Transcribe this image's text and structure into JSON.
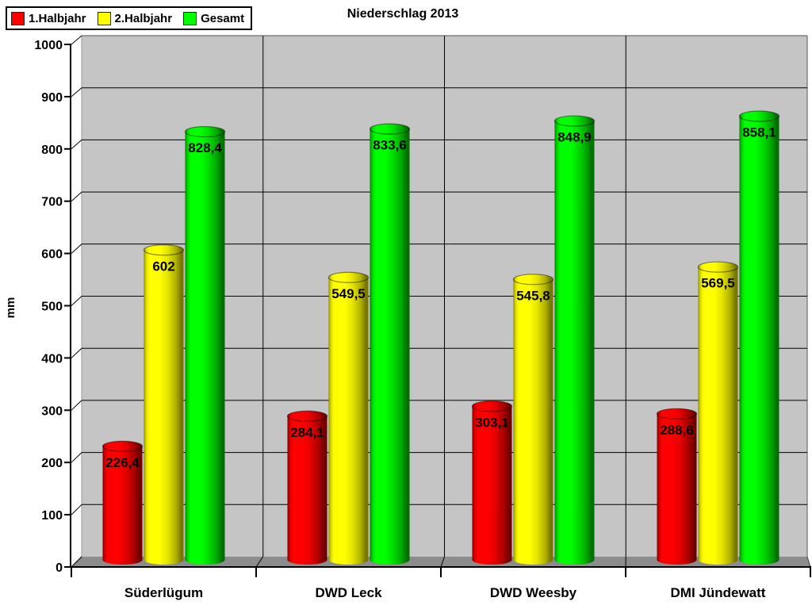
{
  "title": "Niederschlag 2013",
  "chart_data": {
    "type": "bar",
    "style": "3d-cylinder",
    "title": "Niederschlag 2013",
    "xlabel": "",
    "ylabel": "mm",
    "ylim": [
      0,
      1000
    ],
    "ytick_interval": 100,
    "ytick_labels": [
      "0",
      "100",
      "200",
      "300",
      "400",
      "500",
      "600",
      "700",
      "800",
      "900",
      "1000"
    ],
    "grid": true,
    "legend_position": "top-left",
    "categories": [
      "Süderlügum",
      "DWD Leck",
      "DWD Weesby",
      "DMI Jündewatt"
    ],
    "series": [
      {
        "name": "1.Halbjahr",
        "values": [
          226.4,
          284.1,
          303.1,
          288.6
        ],
        "value_labels": [
          "226,4",
          "284,1",
          "303,1",
          "288,6"
        ],
        "colors": {
          "bright": "#ff0000",
          "mid": "#e00000",
          "dark": "#a60000",
          "edge": "#6e0000"
        }
      },
      {
        "name": "2.Halbjahr",
        "values": [
          602,
          549.5,
          545.8,
          569.5
        ],
        "value_labels": [
          "602",
          "549,5",
          "545,8",
          "569,5"
        ],
        "colors": {
          "bright": "#ffff00",
          "mid": "#e4e400",
          "dark": "#b2b200",
          "edge": "#767600"
        }
      },
      {
        "name": "Gesamt",
        "values": [
          828.4,
          833.6,
          848.9,
          858.1
        ],
        "value_labels": [
          "828,4",
          "833,6",
          "848,9",
          "858,1"
        ],
        "colors": {
          "bright": "#00ff00",
          "mid": "#00da00",
          "dark": "#00a600",
          "edge": "#006e00"
        }
      }
    ],
    "wall_color": "#c5c5c5",
    "floor_color": "#8c8c8c",
    "gridline_color": "#000000",
    "text_color": "#000000"
  }
}
